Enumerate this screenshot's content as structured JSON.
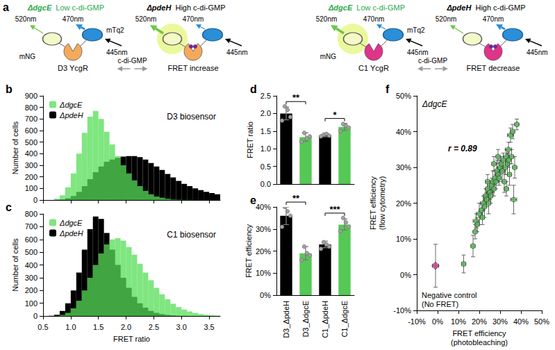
{
  "panel_a": {
    "panel": "a",
    "pairs": [
      {
        "ligand": "c-di-GMP",
        "states": [
          {
            "strain": "ΔdgcE",
            "condition": "Low c-di-GMP",
            "color": "#2aa84a",
            "caption": "D3 YcgR",
            "acceptor": "mNG",
            "donor": "mTq2",
            "emission_acceptor": "520nm",
            "emission_donor": "470nm",
            "excitation": "445nm"
          },
          {
            "strain": "ΔpdeH",
            "condition": "High c-di-GMP",
            "color": "#000000",
            "caption": "FRET increase",
            "emission_acceptor": "520nm",
            "emission_donor": "470nm",
            "excitation": "445nm"
          }
        ]
      },
      {
        "ligand": "c-di-GMP",
        "states": [
          {
            "strain": "ΔdgcE",
            "condition": "Low c-di-GMP",
            "color": "#2aa84a",
            "caption": "C1 YcgR",
            "acceptor": "mNG",
            "donor": "mTq2",
            "emission_acceptor": "520nm",
            "emission_donor": "470nm",
            "excitation": "445nm"
          },
          {
            "strain": "ΔpdeH",
            "condition": "High c-di-GMP",
            "color": "#000000",
            "caption": "FRET decrease",
            "emission_acceptor": "520nm",
            "emission_donor": "470nm",
            "excitation": "445nm"
          }
        ]
      }
    ]
  },
  "chart_data": [
    {
      "panel": "b",
      "type": "histogram",
      "ylabel": "Number of cells",
      "annotations": [
        "D3 biosensor"
      ],
      "bins": [
        0.5,
        0.6,
        0.7,
        0.8,
        0.9,
        1.0,
        1.1,
        1.2,
        1.3,
        1.4,
        1.5,
        1.6,
        1.7,
        1.8,
        1.9,
        2.0,
        2.1,
        2.2,
        2.3,
        2.4,
        2.5,
        2.6,
        2.7,
        2.8,
        2.9,
        3.0,
        3.1,
        3.2,
        3.3,
        3.4,
        3.5,
        3.6,
        3.7
      ],
      "series": [
        {
          "name": "ΔdgcE",
          "color": "#55dd55",
          "counts": [
            0,
            0,
            10,
            40,
            110,
            230,
            400,
            580,
            720,
            770,
            700,
            590,
            480,
            380,
            300,
            230,
            170,
            120,
            80,
            50,
            30,
            20,
            10,
            5,
            3,
            2,
            1,
            0,
            0,
            0,
            0,
            0
          ]
        },
        {
          "name": "ΔpdeH",
          "color": "#000000",
          "counts": [
            0,
            0,
            2,
            5,
            15,
            35,
            70,
            120,
            180,
            240,
            290,
            330,
            350,
            365,
            375,
            380,
            380,
            370,
            350,
            320,
            290,
            260,
            225,
            195,
            165,
            140,
            120,
            100,
            85,
            70,
            60,
            50
          ]
        }
      ],
      "xlim": [
        0.5,
        3.7
      ],
      "xticks": [
        0.5,
        {
          "value": 1,
          "label": "1.0"
        },
        1.5,
        {
          "value": 2,
          "label": "2.0"
        },
        2.5,
        {
          "value": 3,
          "label": "3.0"
        },
        3.5
      ],
      "ylim": [
        0,
        900
      ],
      "yticks": [
        0,
        100,
        200,
        300,
        400,
        500,
        600,
        700,
        800,
        900
      ],
      "grid": false,
      "legend": "top-left",
      "tick_labels": "y"
    },
    {
      "panel": "c",
      "type": "histogram",
      "xlabel": "FRET ratio",
      "ylabel": "Number of cells",
      "annotations": [
        "C1 biosensor"
      ],
      "bins": [
        0.5,
        0.6,
        0.7,
        0.8,
        0.9,
        1.0,
        1.1,
        1.2,
        1.3,
        1.4,
        1.5,
        1.6,
        1.7,
        1.8,
        1.9,
        2.0,
        2.1,
        2.2,
        2.3,
        2.4,
        2.5,
        2.6,
        2.7,
        2.8,
        2.9,
        3.0,
        3.1,
        3.2,
        3.3,
        3.4,
        3.5,
        3.6,
        3.7
      ],
      "series": [
        {
          "name": "ΔdgcE",
          "color": "#55dd55",
          "counts": [
            0,
            0,
            2,
            8,
            25,
            60,
            120,
            200,
            300,
            400,
            490,
            560,
            600,
            610,
            590,
            540,
            480,
            410,
            340,
            280,
            220,
            170,
            130,
            95,
            70,
            50,
            35,
            25,
            15,
            10,
            6,
            3
          ]
        },
        {
          "name": "ΔpdeH",
          "color": "#000000",
          "counts": [
            0,
            2,
            10,
            40,
            100,
            200,
            340,
            520,
            680,
            780,
            760,
            650,
            520,
            400,
            300,
            220,
            150,
            100,
            65,
            40,
            25,
            15,
            8,
            4,
            2,
            1,
            0,
            0,
            0,
            0,
            0,
            0
          ]
        }
      ],
      "xlim": [
        0.5,
        3.7
      ],
      "xticks": [
        0.5,
        {
          "value": 1,
          "label": "1.0"
        },
        1.5,
        {
          "value": 2,
          "label": "2.0"
        },
        2.5,
        {
          "value": 3,
          "label": "3.0"
        },
        3.5
      ],
      "ylim": [
        0,
        800
      ],
      "yticks": [
        0,
        100,
        200,
        300,
        400,
        500,
        600,
        700,
        800
      ],
      "grid": false,
      "legend": "top-left"
    },
    {
      "panel": "d",
      "type": "bar",
      "ylabel": "FRET ratio",
      "categories": [
        "D3_ΔpdeH",
        "D3_ΔdgcE",
        "C1_ΔpdeH",
        "C1_ΔdgcE"
      ],
      "values": [
        2,
        1.33,
        1.38,
        1.62
      ],
      "errors": [
        0.18,
        0.12,
        0.04,
        0.1
      ],
      "points": [
        [
          1.8,
          2.2,
          2.1,
          1.9
        ],
        [
          1.2,
          1.45,
          1.3,
          1.35
        ],
        [
          1.35,
          1.4,
          1.42,
          1.37
        ],
        [
          1.5,
          1.7,
          1.65,
          1.6
        ]
      ],
      "colors": [
        "#000000",
        "#55c855",
        "#000000",
        "#55c855"
      ],
      "significance": [
        {
          "label": "**",
          "between": [
            "D3_ΔpdeH",
            "D3_ΔdgcE"
          ]
        },
        {
          "label": "*",
          "between": [
            "C1_ΔpdeH",
            "C1_ΔdgcE"
          ]
        }
      ],
      "ylim": [
        0,
        2.5
      ],
      "yticks": [
        {
          "value": 0,
          "label": "0.0"
        },
        0.5,
        {
          "value": 1,
          "label": "1.0"
        },
        1.5,
        {
          "value": 2,
          "label": "2.0"
        },
        2.5
      ],
      "grid": false,
      "tick_labels": "y"
    },
    {
      "panel": "e",
      "type": "bar",
      "ylabel": "FRET efficiency",
      "categories": [
        "D3_ΔpdeH",
        "D3_ΔdgcE",
        "C1_ΔpdeH",
        "C1_ΔdgcE"
      ],
      "values": [
        36,
        19,
        23,
        32
      ],
      "errors": [
        4,
        3,
        1.5,
        2.5
      ],
      "points": [
        [
          31,
          40,
          38,
          36
        ],
        [
          16,
          22,
          19,
          18
        ],
        [
          21,
          24,
          23,
          22
        ],
        [
          29,
          35,
          33,
          31
        ]
      ],
      "colors": [
        "#000000",
        "#55c855",
        "#000000",
        "#55c855"
      ],
      "significance": [
        {
          "label": "**",
          "between": [
            "D3_ΔpdeH",
            "D3_ΔdgcE"
          ]
        },
        {
          "label": "***",
          "between": [
            "C1_ΔpdeH",
            "C1_ΔdgcE"
          ]
        }
      ],
      "ylim": [
        0,
        40
      ],
      "yticks": [
        {
          "value": 0,
          "label": "0%"
        },
        {
          "value": 10,
          "label": "10%"
        },
        {
          "value": 20,
          "label": "20%"
        },
        {
          "value": 30,
          "label": "30%"
        },
        {
          "value": 40,
          "label": "40%"
        }
      ],
      "grid": false
    },
    {
      "panel": "f",
      "type": "scatter",
      "xlabel": "FRET efficiency (photobleaching)",
      "ylabel": "FRET efficiency (flow cytometry)",
      "annotations": [
        "r = 0.89"
      ],
      "series": [
        {
          "name": "ΔdgcE",
          "color": "#5cb85c",
          "marker": "circle",
          "x": [
            12.5,
            17,
            18,
            18.5,
            19,
            20,
            21,
            21.5,
            22,
            22.5,
            23,
            23.5,
            24,
            24.5,
            25,
            25.5,
            26,
            26.5,
            27,
            27.5,
            28,
            28.5,
            29,
            29.5,
            30,
            30.5,
            31,
            31.5,
            32,
            32.5,
            33,
            33.5,
            34,
            34,
            34.5,
            35,
            35.5,
            36,
            36.5,
            37,
            38,
            33,
            29,
            27,
            24
          ],
          "y": [
            3,
            8,
            12,
            15,
            14,
            17,
            18,
            16,
            20,
            19,
            22,
            21,
            24,
            20,
            23,
            22,
            25,
            26,
            24,
            27,
            26,
            29,
            28,
            27,
            30,
            31,
            29,
            32,
            26,
            30,
            33,
            31,
            32,
            35,
            28,
            39,
            33,
            40,
            21,
            30,
            42,
            24,
            33,
            31,
            26
          ],
          "x_err": [
            1,
            1,
            1,
            1.5,
            1,
            1.5,
            1,
            1,
            1.5,
            1,
            1,
            1.5,
            1,
            1,
            1.5,
            1,
            1,
            1.5,
            1,
            1,
            1.5,
            1,
            1,
            1,
            1.5,
            1,
            1,
            1.5,
            1,
            1,
            1.5,
            1,
            1,
            1.5,
            1,
            1.5,
            1,
            1,
            1.5,
            1,
            1,
            1,
            1,
            1,
            1
          ],
          "y_err": [
            2.5,
            3,
            2,
            2,
            2,
            3,
            2,
            2,
            2,
            3,
            2,
            2,
            2,
            3,
            2,
            2,
            2,
            3,
            2,
            2,
            2,
            3,
            2,
            2,
            2,
            2,
            3,
            2,
            3,
            2,
            2,
            3,
            2,
            2,
            3,
            2,
            2,
            2,
            4,
            3,
            1.5,
            2,
            2,
            2,
            2
          ]
        },
        {
          "name": "Negative control (No FRET)",
          "color": "#d6338c",
          "marker": "diamond",
          "x": [
            -1
          ],
          "y": [
            2.5
          ],
          "x_err": [
            1.5
          ],
          "y_err": [
            6
          ]
        }
      ],
      "xlim": [
        -10,
        50
      ],
      "xticks": [
        {
          "value": -10,
          "label": "-10%"
        },
        {
          "value": 0,
          "label": "0%"
        },
        {
          "value": 10,
          "label": "10%"
        },
        {
          "value": 20,
          "label": "20%"
        },
        {
          "value": 30,
          "label": "30%"
        },
        {
          "value": 40,
          "label": "40%"
        },
        {
          "value": 50,
          "label": "50%"
        }
      ],
      "ylim": [
        -10,
        50
      ],
      "yticks": [
        {
          "value": -10,
          "label": "-10%"
        },
        {
          "value": 0,
          "label": "0%"
        },
        {
          "value": 10,
          "label": "10%"
        },
        {
          "value": 20,
          "label": "20%"
        },
        {
          "value": 30,
          "label": "30%"
        },
        {
          "value": 40,
          "label": "40%"
        },
        {
          "value": 50,
          "label": "50%"
        }
      ],
      "grid": false
    }
  ]
}
